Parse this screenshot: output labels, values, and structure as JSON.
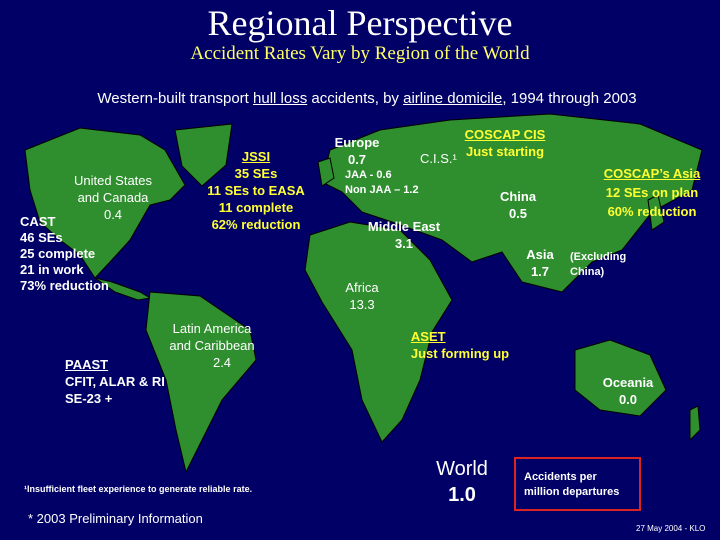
{
  "header": {
    "title": "Regional Perspective",
    "subtitle": "Accident Rates Vary by Region of the World"
  },
  "scope": {
    "parts": [
      "Western-built transport",
      "hull loss",
      "accidents, by",
      "airline domicile",
      ", 1994 through 2003"
    ]
  },
  "regions": [
    {
      "name_lines": [
        "United States",
        "and Canada"
      ],
      "rate": "0.4"
    },
    {
      "name_lines": [
        "Europe"
      ],
      "rate": "0.7"
    },
    {
      "name_lines": [
        "C.I.S.¹"
      ]
    },
    {
      "name_lines": [
        "China"
      ],
      "rate": "0.5"
    },
    {
      "name_lines": [
        "Middle East"
      ],
      "rate": "3.1"
    },
    {
      "name_lines": [
        "Asia"
      ],
      "rate": "1.7",
      "note_lines": [
        "(Excluding",
        "China)"
      ]
    },
    {
      "name_lines": [
        "Africa"
      ],
      "rate": "13.3"
    },
    {
      "name_lines": [
        "Latin America",
        "and Caribbean"
      ],
      "rate": "2.4"
    },
    {
      "name_lines": [
        "Oceania"
      ],
      "rate": "0.0"
    }
  ],
  "programs": [
    {
      "lines": [
        "CAST",
        "46 SEs",
        "25 complete",
        "21 in work",
        "73% reduction"
      ]
    },
    {
      "lines": [
        "JSSI",
        "35 SEs",
        "11 SEs to EASA",
        "11 complete",
        "62% reduction"
      ]
    },
    {
      "lines": [
        "JAA - 0.6",
        "Non JAA – 1.2"
      ]
    },
    {
      "lines": [
        "COSCAP CIS",
        "Just starting"
      ]
    },
    {
      "lines": [
        "COSCAP’s Asia",
        "12 SEs on plan",
        "60% reduction"
      ]
    },
    {
      "lines": [
        "ASET",
        "Just forming up"
      ]
    },
    {
      "lines": [
        "PAAST",
        "CFIT, ALAR & RI",
        "SE-23 +"
      ]
    }
  ],
  "world": {
    "label": "World",
    "rate": "1.0"
  },
  "legend": {
    "lines": [
      "Accidents per",
      "million departures"
    ]
  },
  "footnotes": {
    "insufficient": "¹Insufficient fleet experience to generate reliable rate.",
    "preliminary": "* 2003 Preliminary Information",
    "date": "27 May 2004 - KLO"
  }
}
